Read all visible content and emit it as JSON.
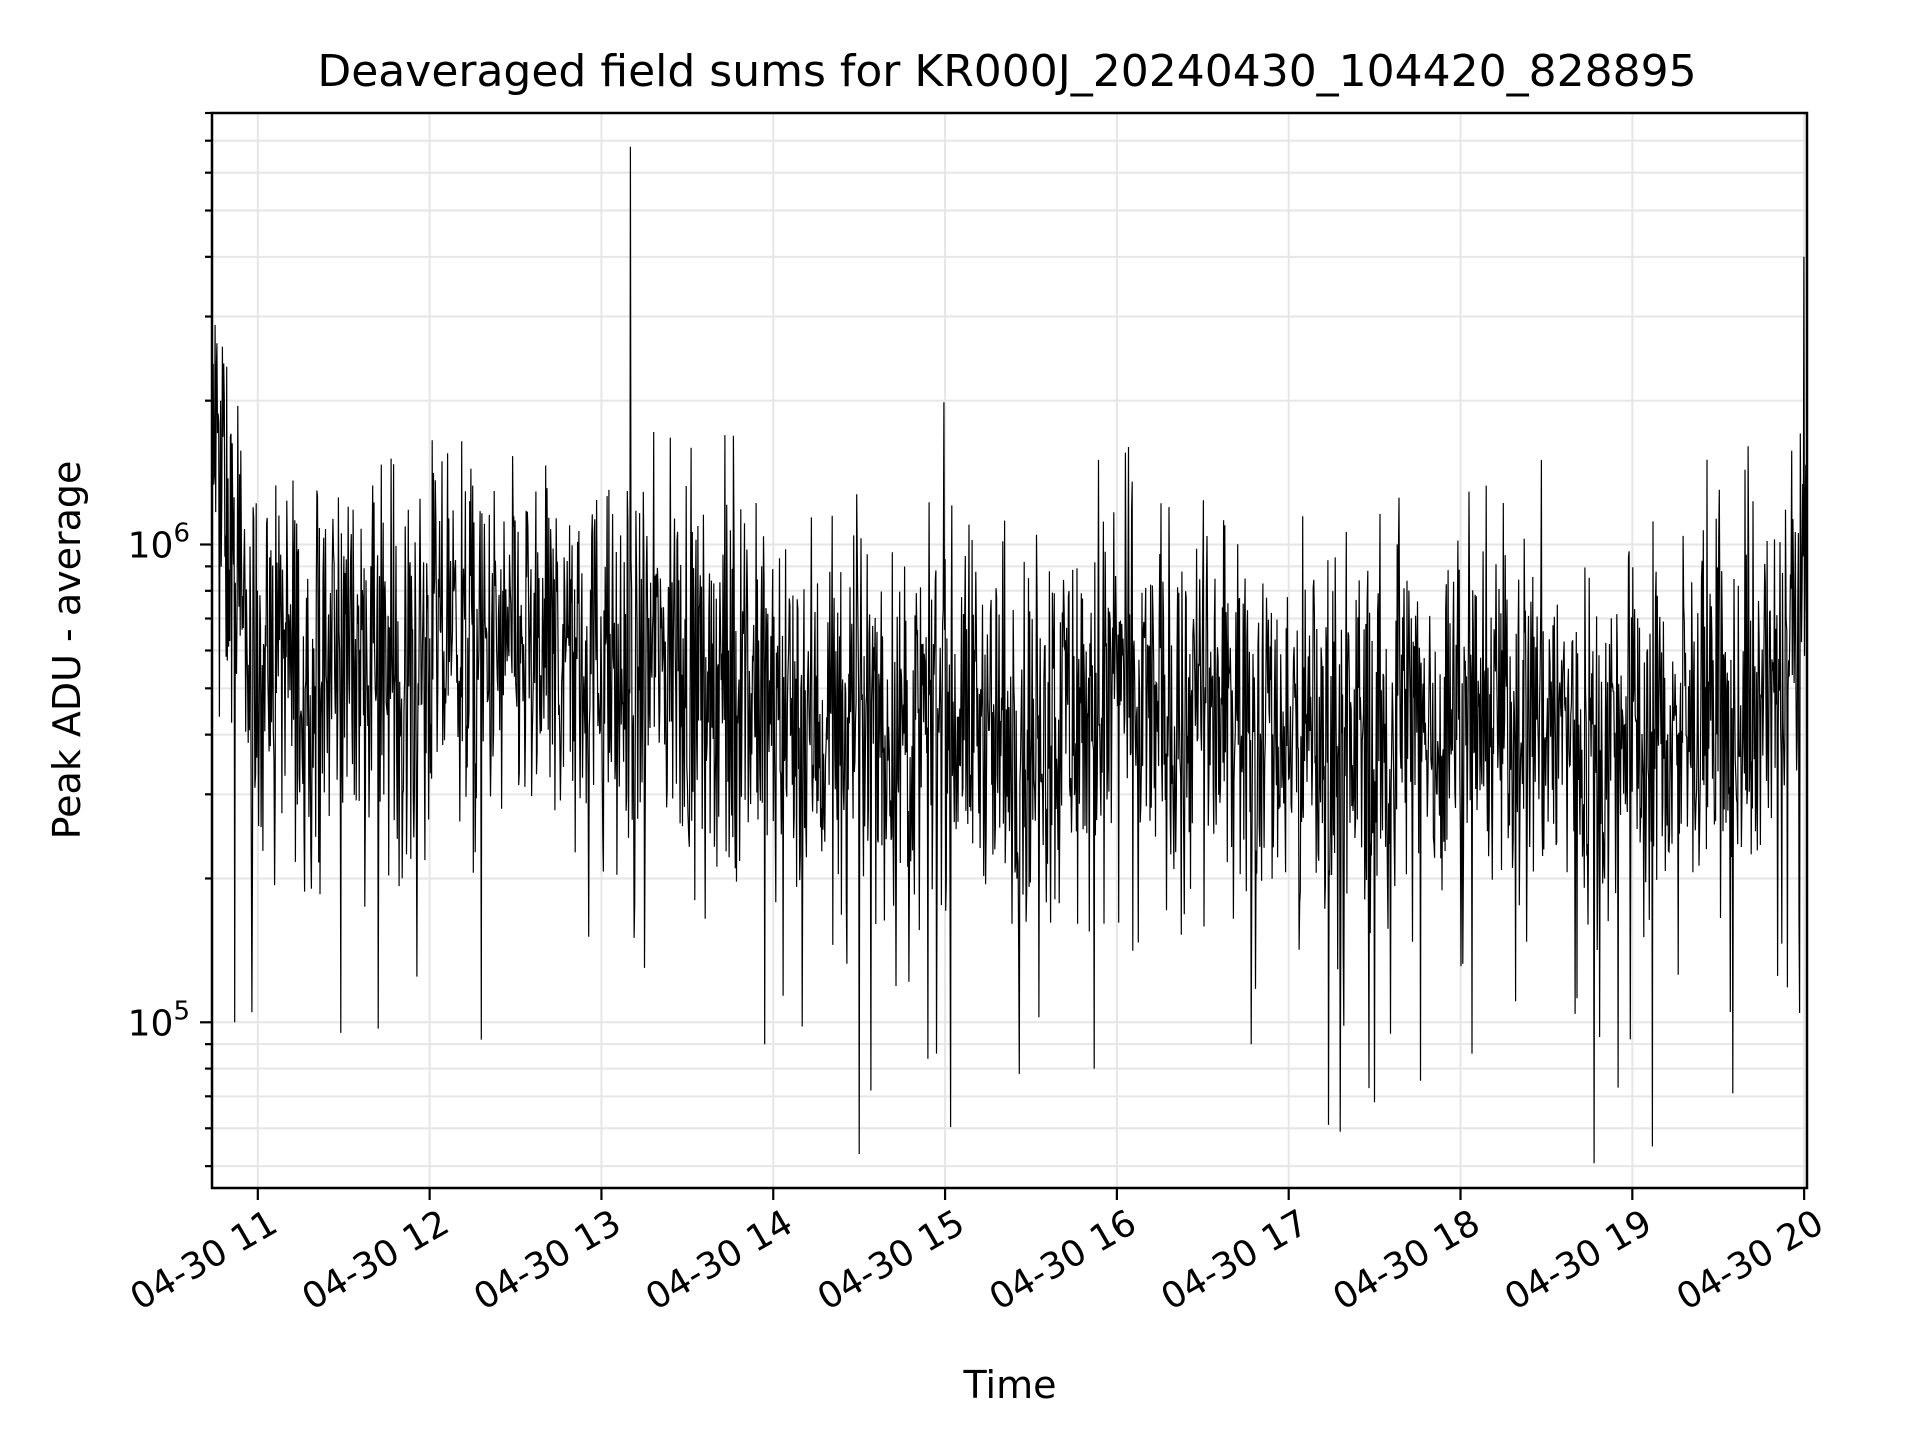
{
  "chart_data": {
    "type": "line",
    "title": "Deaveraged field sums for KR000J_20240430_104420_828895",
    "xlabel": "Time",
    "ylabel": "Peak ADU - average",
    "yscale": "log",
    "xlim": [
      "2024-04-30 10:44",
      "2024-04-30 20:01"
    ],
    "ylim": [
      45000,
      8000000
    ],
    "grid": true,
    "x_ticks": [
      "2024-04-30 11:00",
      "2024-04-30 12:00",
      "2024-04-30 13:00",
      "2024-04-30 14:00",
      "2024-04-30 15:00",
      "2024-04-30 16:00",
      "2024-04-30 17:00",
      "2024-04-30 18:00",
      "2024-04-30 19:00",
      "2024-04-30 20:00"
    ],
    "x_tick_labels": [
      "04-30 11",
      "04-30 12",
      "04-30 13",
      "04-30 14",
      "04-30 15",
      "04-30 16",
      "04-30 17",
      "04-30 18",
      "04-30 19",
      "04-30 20"
    ],
    "y_ticks": [
      100000,
      1000000
    ],
    "y_tick_base": "10",
    "y_tick_exponents": [
      "5",
      "6"
    ],
    "series": [
      {
        "color": "#000000",
        "x": [
          "2024-04-30 10:44",
          "2024-04-30 10:50",
          "2024-04-30 10:55",
          "2024-04-30 11:00",
          "2024-04-30 11:10",
          "2024-04-30 11:20",
          "2024-04-30 11:30",
          "2024-04-30 11:40",
          "2024-04-30 11:50",
          "2024-04-30 12:00",
          "2024-04-30 12:10",
          "2024-04-30 12:20",
          "2024-04-30 12:30",
          "2024-04-30 12:40",
          "2024-04-30 12:50",
          "2024-04-30 13:00",
          "2024-04-30 13:10",
          "2024-04-30 13:20",
          "2024-04-30 13:30",
          "2024-04-30 13:40",
          "2024-04-30 13:50",
          "2024-04-30 14:00",
          "2024-04-30 14:10",
          "2024-04-30 14:20",
          "2024-04-30 14:30",
          "2024-04-30 14:40",
          "2024-04-30 14:50",
          "2024-04-30 15:00",
          "2024-04-30 15:10",
          "2024-04-30 15:20",
          "2024-04-30 15:30",
          "2024-04-30 15:40",
          "2024-04-30 15:50",
          "2024-04-30 16:00",
          "2024-04-30 16:10",
          "2024-04-30 16:20",
          "2024-04-30 16:30",
          "2024-04-30 16:40",
          "2024-04-30 16:50",
          "2024-04-30 17:00",
          "2024-04-30 17:10",
          "2024-04-30 17:20",
          "2024-04-30 17:30",
          "2024-04-30 17:40",
          "2024-04-30 17:50",
          "2024-04-30 18:00",
          "2024-04-30 18:10",
          "2024-04-30 18:20",
          "2024-04-30 18:30",
          "2024-04-30 18:40",
          "2024-04-30 18:50",
          "2024-04-30 19:00",
          "2024-04-30 19:10",
          "2024-04-30 19:20",
          "2024-04-30 19:30",
          "2024-04-30 19:40",
          "2024-04-30 19:50",
          "2024-04-30 20:00"
        ],
        "y": [
          1800000,
          1000000,
          600000,
          550000,
          600000,
          500000,
          650000,
          550000,
          500000,
          600000,
          650000,
          550000,
          600000,
          550000,
          600000,
          550000,
          500000,
          600000,
          550000,
          550000,
          500000,
          450000,
          450000,
          400000,
          450000,
          400000,
          400000,
          450000,
          450000,
          400000,
          400000,
          450000,
          450000,
          500000,
          450000,
          450000,
          450000,
          450000,
          450000,
          400000,
          400000,
          400000,
          400000,
          450000,
          400000,
          450000,
          450000,
          450000,
          450000,
          400000,
          400000,
          400000,
          400000,
          400000,
          400000,
          450000,
          500000,
          800000
        ],
        "spikes": [
          {
            "x": "2024-04-30 10:47",
            "y": 2000000
          },
          {
            "x": "2024-04-30 10:53",
            "y": 1950000
          },
          {
            "x": "2024-04-30 10:52",
            "y": 100000
          },
          {
            "x": "2024-04-30 10:58",
            "y": 105000
          },
          {
            "x": "2024-04-30 11:29",
            "y": 95000
          },
          {
            "x": "2024-04-30 11:42",
            "y": 97000
          },
          {
            "x": "2024-04-30 12:18",
            "y": 92000
          },
          {
            "x": "2024-04-30 13:10",
            "y": 6800000
          },
          {
            "x": "2024-04-30 13:15",
            "y": 130000
          },
          {
            "x": "2024-04-30 13:57",
            "y": 90000
          },
          {
            "x": "2024-04-30 14:10",
            "y": 98000
          },
          {
            "x": "2024-04-30 14:30",
            "y": 53000
          },
          {
            "x": "2024-04-30 14:34",
            "y": 72000
          },
          {
            "x": "2024-04-30 14:57",
            "y": 86000
          },
          {
            "x": "2024-04-30 15:26",
            "y": 78000
          },
          {
            "x": "2024-04-30 15:52",
            "y": 80000
          },
          {
            "x": "2024-04-30 16:04",
            "y": 1600000
          },
          {
            "x": "2024-04-30 16:47",
            "y": 90000
          },
          {
            "x": "2024-04-30 17:14",
            "y": 61000
          },
          {
            "x": "2024-04-30 17:18",
            "y": 59000
          },
          {
            "x": "2024-04-30 17:30",
            "y": 68000
          },
          {
            "x": "2024-04-30 18:04",
            "y": 86000
          },
          {
            "x": "2024-04-30 18:55",
            "y": 73000
          },
          {
            "x": "2024-04-30 19:07",
            "y": 55000
          },
          {
            "x": "2024-04-30 19:35",
            "y": 71000
          },
          {
            "x": "2024-04-30 20:00",
            "y": 4000000
          }
        ]
      }
    ]
  }
}
